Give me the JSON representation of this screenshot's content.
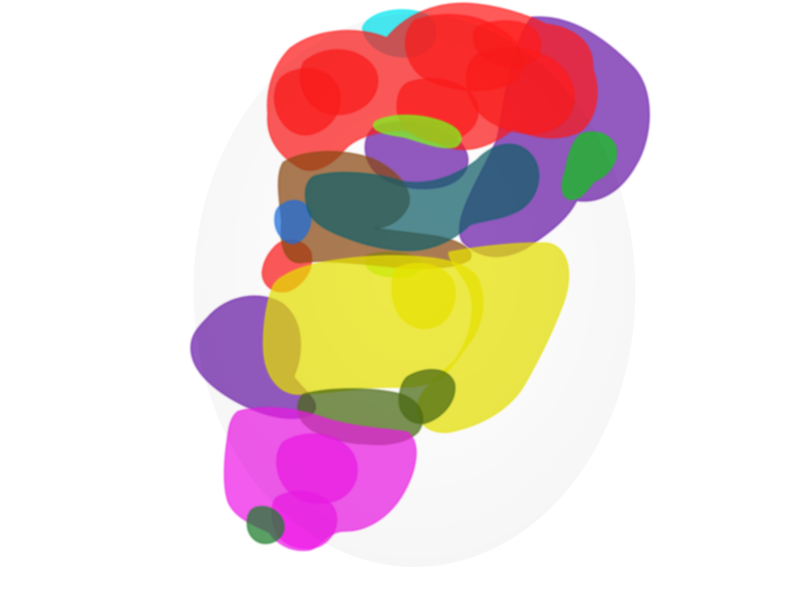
{
  "scene": {
    "background": "#ffffff",
    "segments": [
      {
        "name": "cyan-region",
        "color": "#00e5f0"
      },
      {
        "name": "purple-region",
        "color": "#6a1fa8"
      },
      {
        "name": "red-region",
        "color": "#ff1a1a"
      },
      {
        "name": "lime-region",
        "color": "#7dff1a"
      },
      {
        "name": "teal-region",
        "color": "#0f5f6a"
      },
      {
        "name": "brown-region",
        "color": "#8a4a10"
      },
      {
        "name": "blue-region",
        "color": "#1f6fe0"
      },
      {
        "name": "green-region",
        "color": "#12c81a"
      },
      {
        "name": "yellow-region",
        "color": "#e8e200"
      },
      {
        "name": "olive-region",
        "color": "#4a6a10"
      },
      {
        "name": "magenta-region",
        "color": "#ee1ae8"
      },
      {
        "name": "dark-green-region",
        "color": "#1e7a2a"
      }
    ]
  }
}
